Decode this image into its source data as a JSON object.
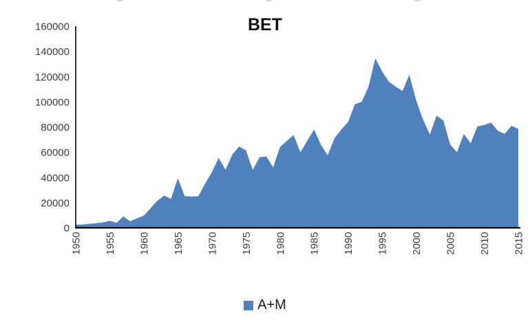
{
  "title": "BET",
  "legend": {
    "label": "A+M",
    "swatch_color": "#4f81bd"
  },
  "axes": {
    "y_tick_labels": [
      "0",
      "20000",
      "40000",
      "60000",
      "80000",
      "100000",
      "120000",
      "140000",
      "160000"
    ],
    "x_tick_labels": [
      "1950",
      "1955",
      "1960",
      "1965",
      "1970",
      "1975",
      "1980",
      "1985",
      "1990",
      "1995",
      "2000",
      "2005",
      "2010",
      "2015"
    ]
  },
  "chart_data": {
    "type": "area",
    "title": "BET",
    "xlabel": "",
    "ylabel": "",
    "x": [
      1950,
      1951,
      1952,
      1953,
      1954,
      1955,
      1956,
      1957,
      1958,
      1959,
      1960,
      1961,
      1962,
      1963,
      1964,
      1965,
      1966,
      1967,
      1968,
      1969,
      1970,
      1971,
      1972,
      1973,
      1974,
      1975,
      1976,
      1977,
      1978,
      1979,
      1980,
      1981,
      1982,
      1983,
      1984,
      1985,
      1986,
      1987,
      1988,
      1989,
      1990,
      1991,
      1992,
      1993,
      1994,
      1995,
      1996,
      1997,
      1998,
      1999,
      2000,
      2001,
      2002,
      2003,
      2004,
      2005,
      2006,
      2007,
      2008,
      2009,
      2010,
      2011,
      2012,
      2013,
      2014,
      2015
    ],
    "series": [
      {
        "name": "A+M",
        "values": [
          2400,
          2600,
          3100,
          3600,
          4200,
          5500,
          4000,
          9000,
          5200,
          7500,
          9700,
          15500,
          21500,
          25500,
          23000,
          39500,
          25200,
          24800,
          25000,
          35000,
          44000,
          55500,
          46000,
          58000,
          64500,
          61500,
          46000,
          56000,
          56500,
          48000,
          64000,
          69000,
          73500,
          60000,
          69000,
          78000,
          66000,
          57500,
          71000,
          78000,
          84000,
          98000,
          100000,
          112000,
          134500,
          124000,
          116000,
          112000,
          108500,
          121500,
          101000,
          86000,
          74000,
          89000,
          85000,
          66000,
          60000,
          74500,
          67000,
          80500,
          81500,
          83500,
          77000,
          74500,
          81000,
          78500
        ]
      }
    ],
    "ylim": [
      0,
      160000
    ],
    "yticks": [
      0,
      20000,
      40000,
      60000,
      80000,
      100000,
      120000,
      140000,
      160000
    ],
    "xticks": [
      1950,
      1955,
      1960,
      1965,
      1970,
      1975,
      1980,
      1985,
      1990,
      1995,
      2000,
      2005,
      2010,
      2015
    ],
    "grid": false,
    "legend_position": "bottom",
    "fill_color": "#4f81bd",
    "axis_color": "#000000",
    "tick_label_color": "#3f3f3f"
  }
}
